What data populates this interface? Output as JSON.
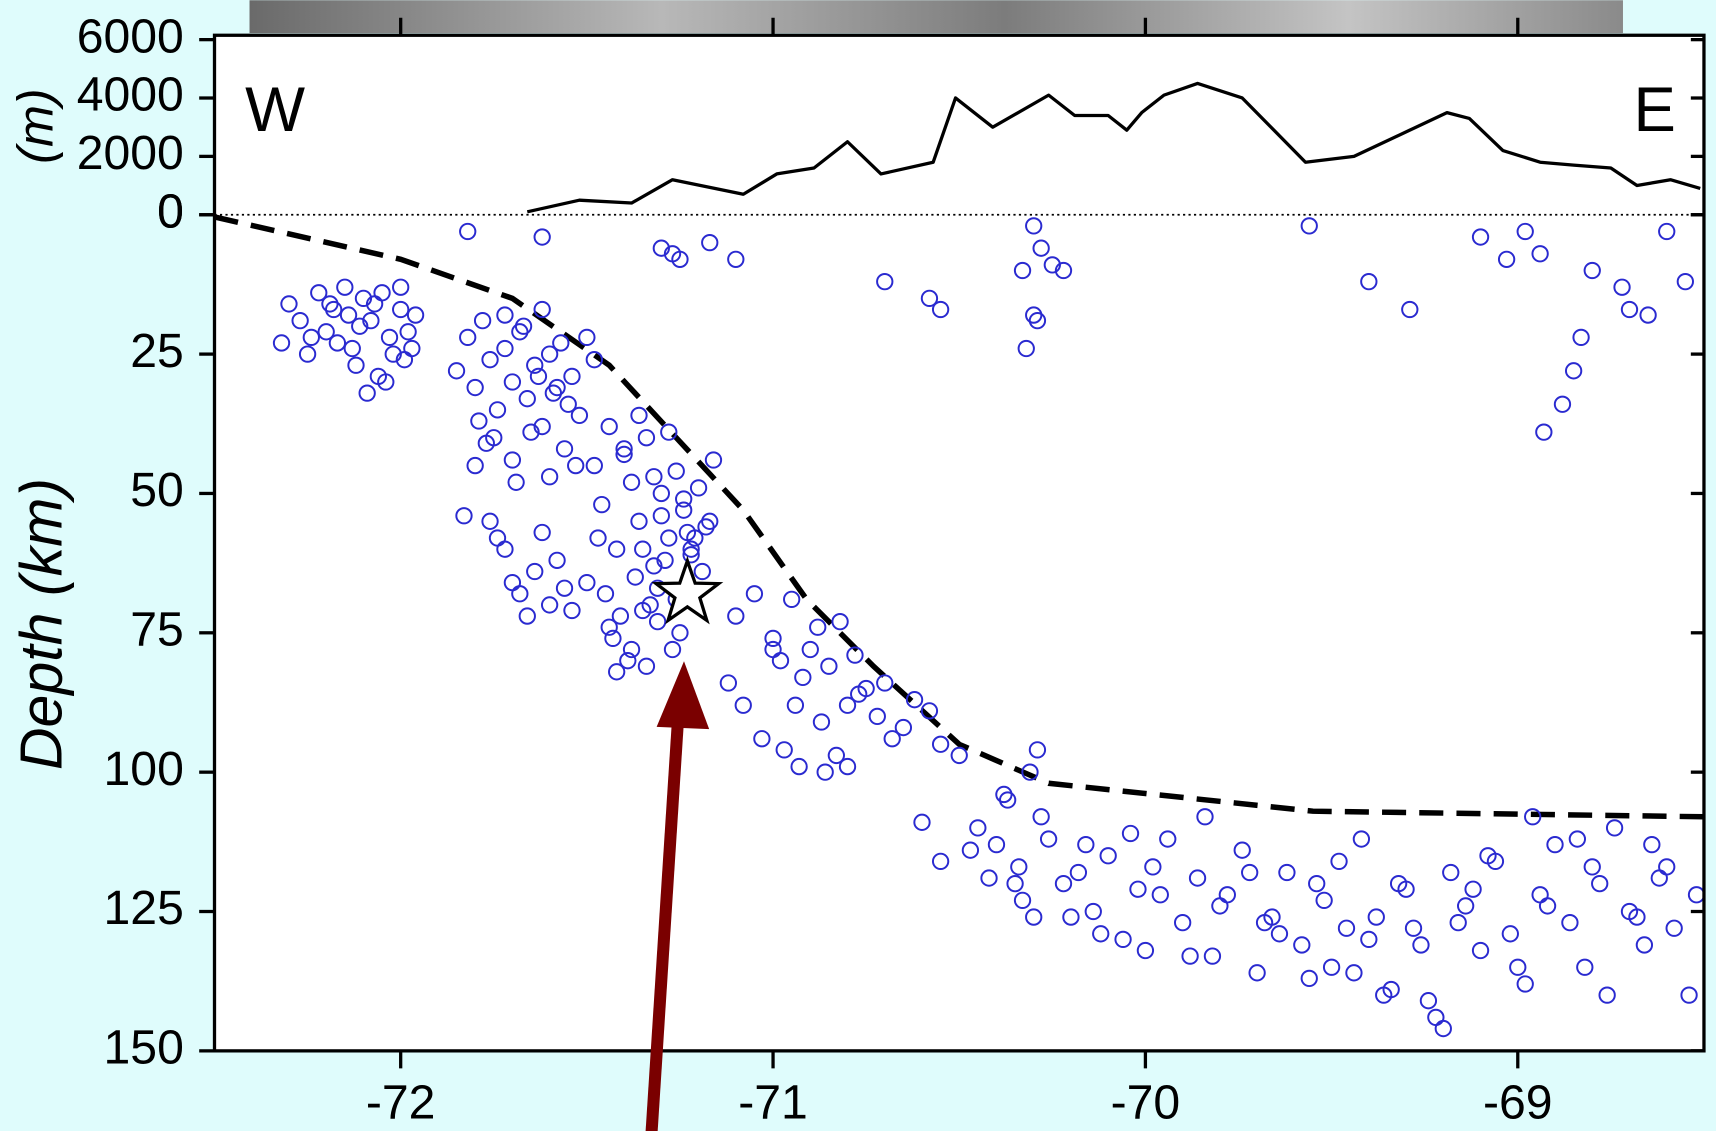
{
  "chart_data": [
    {
      "type": "line",
      "y_label": "(m)",
      "left_label": "W",
      "right_label": "E",
      "xlim": [
        -72.5,
        -68.5
      ],
      "ylim": [
        0,
        6000
      ],
      "yticks": [
        0,
        2000,
        4000,
        6000
      ],
      "color": "#000000",
      "x": [
        -71.66,
        -71.52,
        -71.38,
        -71.27,
        -71.08,
        -70.99,
        -70.89,
        -70.8,
        -70.71,
        -70.57,
        -70.51,
        -70.41,
        -70.26,
        -70.19,
        -70.1,
        -70.05,
        -70.01,
        -69.95,
        -69.86,
        -69.74,
        -69.57,
        -69.44,
        -69.29,
        -69.19,
        -69.13,
        -69.04,
        -68.94,
        -68.85,
        -68.75,
        -68.68,
        -68.59,
        -68.51
      ],
      "values": [
        100,
        500,
        400,
        1200,
        700,
        1400,
        1600,
        2500,
        1400,
        1800,
        4000,
        3000,
        4100,
        3400,
        3400,
        2900,
        3500,
        4100,
        4500,
        4000,
        1800,
        2000,
        2900,
        3500,
        3300,
        2200,
        1800,
        1700,
        1600,
        1000,
        1200,
        900
      ]
    },
    {
      "type": "scatter",
      "y_label": "Depth (km)",
      "xlim": [
        -72.5,
        -68.5
      ],
      "xticks": [
        -72,
        -71,
        -70,
        -69
      ],
      "ylim": [
        0,
        150
      ],
      "y_inverted": true,
      "yticks": [
        0,
        25,
        50,
        75,
        100,
        125,
        150
      ],
      "color": "#2a2ad0",
      "x": [
        -72.32,
        -72.3,
        -72.27,
        -72.25,
        -72.22,
        -72.2,
        -72.18,
        -72.15,
        -72.13,
        -72.1,
        -72.08,
        -72.05,
        -72.03,
        -72.0,
        -71.98,
        -71.96,
        -72.12,
        -72.06,
        -72.02,
        -72.17,
        -72.09,
        -72.24,
        -72.14,
        -72.0,
        -71.97,
        -72.07,
        -72.11,
        -72.19,
        -72.04,
        -71.99,
        -71.85,
        -71.82,
        -71.8,
        -71.78,
        -71.76,
        -71.74,
        -71.72,
        -71.7,
        -71.68,
        -71.66,
        -71.64,
        -71.62,
        -71.6,
        -71.58,
        -71.56,
        -71.54,
        -71.52,
        -71.5,
        -71.8,
        -71.75,
        -71.7,
        -71.65,
        -71.6,
        -71.55,
        -71.72,
        -71.67,
        -71.62,
        -71.57,
        -71.83,
        -71.77,
        -71.69,
        -71.63,
        -71.59,
        -71.53,
        -71.79,
        -71.48,
        -71.48,
        -71.46,
        -71.44,
        -71.42,
        -71.4,
        -71.38,
        -71.36,
        -71.34,
        -71.32,
        -71.3,
        -71.28,
        -71.26,
        -71.24,
        -71.22,
        -71.2,
        -71.18,
        -71.16,
        -71.45,
        -71.41,
        -71.37,
        -71.33,
        -71.29,
        -71.25,
        -71.21,
        -71.43,
        -71.39,
        -71.35,
        -71.31,
        -71.27,
        -71.23,
        -71.19,
        -71.47,
        -71.4,
        -71.36,
        -71.32,
        -71.28,
        -71.24,
        -71.5,
        -71.44,
        -71.38,
        -71.34,
        -71.3,
        -71.26,
        -71.22,
        -71.17,
        -71.42,
        -71.35,
        -71.31,
        -71.76,
        -71.72,
        -71.68,
        -71.64,
        -71.6,
        -71.56,
        -71.74,
        -71.66,
        -71.58,
        -71.62,
        -71.7,
        -71.54,
        -71.1,
        -71.05,
        -71.0,
        -70.98,
        -70.95,
        -70.92,
        -70.9,
        -70.88,
        -70.85,
        -70.82,
        -70.8,
        -70.78,
        -70.75,
        -70.72,
        -70.7,
        -70.65,
        -70.62,
        -70.58,
        -70.55,
        -71.08,
        -71.03,
        -70.97,
        -70.93,
        -70.87,
        -70.83,
        -70.77,
        -70.68,
        -71.12,
        -71.0,
        -70.94,
        -70.86,
        -70.8,
        -70.6,
        -70.5,
        -70.45,
        -70.4,
        -70.37,
        -70.34,
        -70.31,
        -70.28,
        -70.26,
        -70.42,
        -70.38,
        -70.33,
        -70.29,
        -70.47,
        -70.35,
        -70.3,
        -70.55,
        -70.22,
        -70.18,
        -70.14,
        -70.1,
        -70.06,
        -70.02,
        -69.98,
        -69.94,
        -69.9,
        -69.86,
        -69.82,
        -69.78,
        -69.74,
        -69.7,
        -69.66,
        -69.62,
        -69.58,
        -69.54,
        -69.5,
        -69.46,
        -69.42,
        -69.38,
        -69.34,
        -69.3,
        -69.26,
        -69.22,
        -69.18,
        -69.14,
        -69.1,
        -69.06,
        -69.02,
        -68.98,
        -68.94,
        -68.9,
        -68.86,
        -68.82,
        -68.78,
        -68.74,
        -68.7,
        -68.66,
        -68.62,
        -68.58,
        -68.54,
        -70.2,
        -70.12,
        -70.04,
        -69.96,
        -69.88,
        -69.8,
        -69.72,
        -69.64,
        -69.56,
        -69.48,
        -69.4,
        -69.32,
        -69.24,
        -69.16,
        -69.08,
        -69.0,
        -68.92,
        -68.84,
        -68.76,
        -68.68,
        -68.6,
        -68.52,
        -70.16,
        -70.0,
        -69.84,
        -69.68,
        -69.44,
        -69.28,
        -69.2,
        -69.12,
        -68.96,
        -68.8,
        -68.64,
        -69.36,
        -69.52,
        -71.82,
        -71.62,
        -71.3,
        -71.27,
        -71.25,
        -71.17,
        -71.1,
        -70.7,
        -70.58,
        -70.55,
        -70.33,
        -70.3,
        -70.28,
        -70.25,
        -70.22,
        -70.29,
        -70.32,
        -70.3,
        -69.56,
        -69.4,
        -69.29,
        -69.1,
        -69.03,
        -68.93,
        -68.88,
        -68.85,
        -68.83,
        -68.8,
        -68.72,
        -68.7,
        -68.65,
        -68.6,
        -68.55,
        -68.98,
        -68.94
      ],
      "values": [
        23,
        16,
        19,
        25,
        14,
        21,
        17,
        13,
        24,
        15,
        19,
        14,
        22,
        17,
        21,
        18,
        27,
        29,
        25,
        23,
        32,
        22,
        18,
        13,
        24,
        16,
        20,
        16,
        30,
        26,
        28,
        22,
        31,
        19,
        26,
        35,
        24,
        30,
        21,
        33,
        27,
        38,
        25,
        31,
        42,
        29,
        36,
        22,
        45,
        40,
        44,
        39,
        47,
        34,
        18,
        20,
        17,
        23,
        54,
        41,
        48,
        29,
        32,
        45,
        37,
        26,
        45,
        52,
        38,
        60,
        42,
        48,
        55,
        40,
        63,
        50,
        58,
        46,
        53,
        61,
        49,
        56,
        44,
        68,
        72,
        65,
        70,
        62,
        75,
        58,
        76,
        80,
        71,
        67,
        78,
        57,
        64,
        58,
        43,
        36,
        47,
        39,
        51,
        66,
        74,
        78,
        81,
        54,
        69,
        60,
        55,
        82,
        60,
        73,
        55,
        60,
        68,
        64,
        70,
        67,
        58,
        72,
        62,
        57,
        66,
        71,
        72,
        68,
        76,
        80,
        69,
        83,
        78,
        74,
        81,
        73,
        88,
        79,
        85,
        90,
        84,
        92,
        87,
        89,
        95,
        88,
        94,
        96,
        99,
        91,
        97,
        86,
        94,
        84,
        78,
        88,
        100,
        99,
        109,
        97,
        110,
        113,
        105,
        117,
        100,
        108,
        112,
        119,
        104,
        123,
        96,
        114,
        120,
        126,
        116,
        120,
        118,
        125,
        115,
        130,
        121,
        117,
        112,
        127,
        119,
        133,
        122,
        114,
        136,
        126,
        118,
        131,
        120,
        135,
        128,
        112,
        126,
        139,
        121,
        131,
        144,
        118,
        124,
        132,
        116,
        129,
        138,
        122,
        113,
        127,
        135,
        120,
        110,
        125,
        131,
        119,
        128,
        140,
        126,
        129,
        111,
        122,
        133,
        124,
        118,
        129,
        137,
        116,
        130,
        120,
        141,
        127,
        115,
        135,
        124,
        112,
        140,
        126,
        117,
        122,
        113,
        132,
        108,
        127,
        136,
        128,
        146,
        121,
        108,
        117,
        113,
        140,
        123,
        3,
        4,
        6,
        7,
        8,
        5,
        8,
        12,
        15,
        17,
        10,
        2,
        6,
        9,
        10,
        19,
        24,
        18,
        2,
        12,
        17,
        4,
        8,
        39,
        34,
        28,
        22,
        10,
        13,
        17,
        18,
        3,
        12,
        3,
        7
      ],
      "slab": {
        "x": [
          -72.5,
          -72,
          -71.7,
          -71.44,
          -71.26,
          -71.08,
          -70.91,
          -70.73,
          -70.5,
          -70.26,
          -69.55,
          -68.5
        ],
        "values": [
          0.4,
          8,
          15,
          27,
          40,
          53,
          69,
          81,
          95,
          102,
          107,
          108
        ]
      },
      "star": {
        "x": -71.23,
        "value": 68
      }
    }
  ]
}
